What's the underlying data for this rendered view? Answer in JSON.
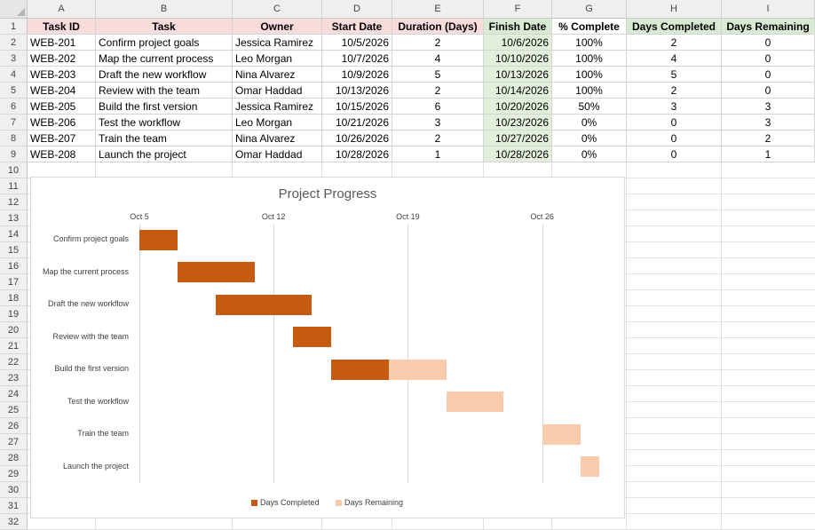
{
  "columns": [
    "A",
    "B",
    "C",
    "D",
    "E",
    "F",
    "G",
    "H",
    "I"
  ],
  "rows": [
    "1",
    "2",
    "3",
    "4",
    "5",
    "6",
    "7",
    "8",
    "9",
    "10",
    "11",
    "12",
    "13",
    "14",
    "15",
    "16",
    "17",
    "18",
    "19",
    "20",
    "21",
    "22",
    "23",
    "24",
    "25",
    "26",
    "27",
    "28",
    "29",
    "30",
    "31",
    "32"
  ],
  "table": {
    "headers": [
      "Task ID",
      "Task",
      "Owner",
      "Start Date",
      "Duration (Days)",
      "Finish Date",
      "% Complete",
      "Days Completed",
      "Days Remaining"
    ],
    "header_colors": [
      "#f8dcdc",
      "#f8dcdc",
      "#f8dcdc",
      "#f8dcdc",
      "#f8dcdc",
      "#d9ead3",
      "#ffffff",
      "#d9ead3",
      "#d9ead3"
    ],
    "rows": [
      [
        "WEB-201",
        "Confirm project goals",
        "Jessica Ramirez",
        "10/5/2026",
        "2",
        "10/6/2026",
        "100%",
        "2",
        "0"
      ],
      [
        "WEB-202",
        "Map the current process",
        "Leo Morgan",
        "10/7/2026",
        "4",
        "10/10/2026",
        "100%",
        "4",
        "0"
      ],
      [
        "WEB-203",
        "Draft the new workflow",
        "Nina Alvarez",
        "10/9/2026",
        "5",
        "10/13/2026",
        "100%",
        "5",
        "0"
      ],
      [
        "WEB-204",
        "Review with the team",
        "Omar Haddad",
        "10/13/2026",
        "2",
        "10/14/2026",
        "100%",
        "2",
        "0"
      ],
      [
        "WEB-205",
        "Build the first version",
        "Jessica Ramirez",
        "10/15/2026",
        "6",
        "10/20/2026",
        "50%",
        "3",
        "3"
      ],
      [
        "WEB-206",
        "Test the workflow",
        "Leo Morgan",
        "10/21/2026",
        "3",
        "10/23/2026",
        "0%",
        "0",
        "3"
      ],
      [
        "WEB-207",
        "Train the team",
        "Nina Alvarez",
        "10/26/2026",
        "2",
        "10/27/2026",
        "0%",
        "0",
        "2"
      ],
      [
        "WEB-208",
        "Launch the project",
        "Omar Haddad",
        "10/28/2026",
        "1",
        "10/28/2026",
        "0%",
        "0",
        "1"
      ]
    ]
  },
  "chart_data": {
    "type": "bar",
    "orientation": "horizontal-stacked",
    "title": "Project Progress",
    "x_tick_labels": [
      "Oct 5",
      "Oct 12",
      "Oct 19",
      "Oct 26"
    ],
    "x_ticks": [
      "2026-10-05",
      "2026-10-12",
      "2026-10-19",
      "2026-10-26"
    ],
    "x_range": [
      "2026-10-05",
      "2026-10-30"
    ],
    "grid": true,
    "legend_position": "bottom",
    "categories": [
      "Confirm project goals",
      "Map the current process",
      "Draft the new workflow",
      "Review with the team",
      "Build the first version",
      "Test the workflow",
      "Train the team",
      "Launch the project"
    ],
    "start_dates": [
      "2026-10-05",
      "2026-10-07",
      "2026-10-09",
      "2026-10-13",
      "2026-10-15",
      "2026-10-21",
      "2026-10-26",
      "2026-10-28"
    ],
    "series": [
      {
        "name": "Days Completed",
        "color": "#c55a11",
        "values": [
          2,
          4,
          5,
          2,
          3,
          0,
          0,
          0
        ]
      },
      {
        "name": "Days Remaining",
        "color": "#f8cbad",
        "values": [
          0,
          0,
          0,
          0,
          3,
          3,
          2,
          1
        ]
      }
    ]
  }
}
